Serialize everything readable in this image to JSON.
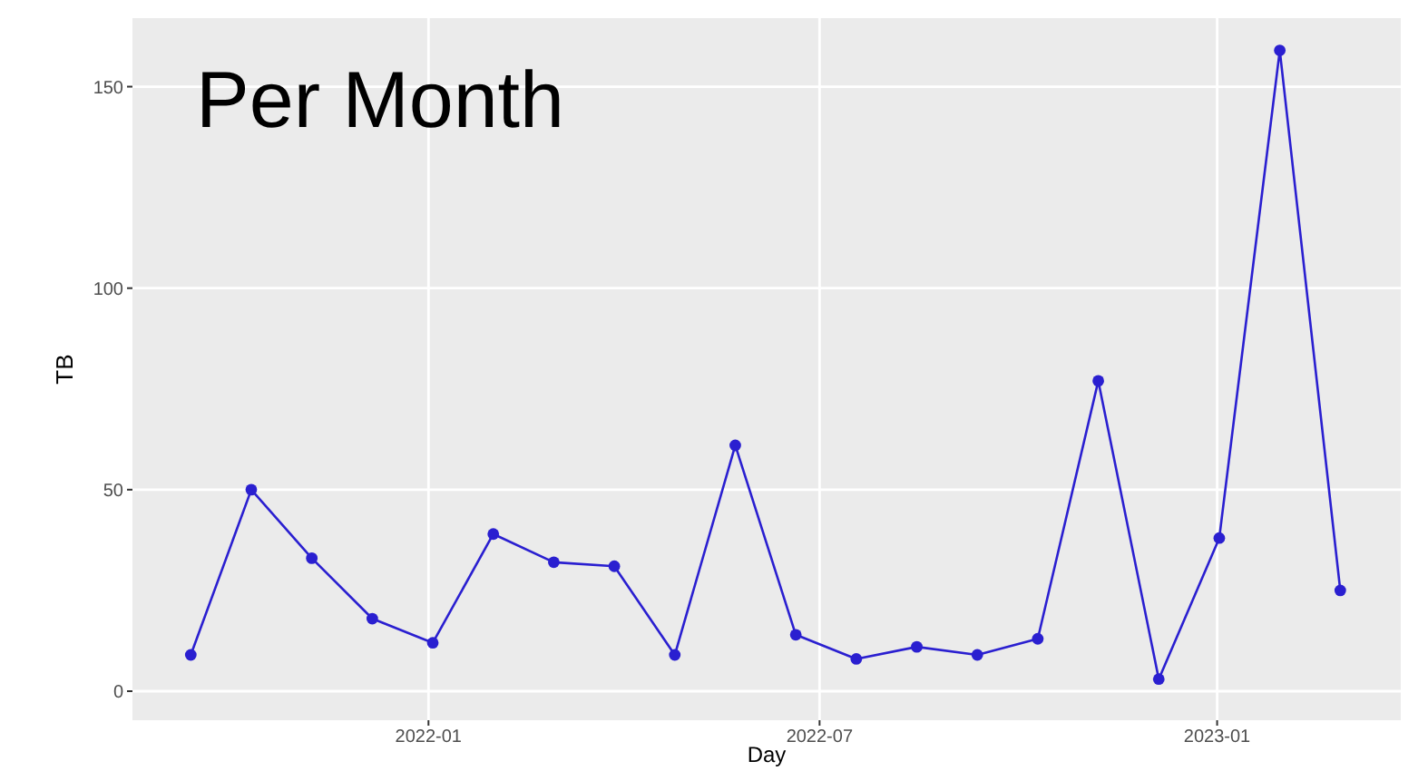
{
  "chart_data": {
    "type": "line",
    "title": "Per Month",
    "xlabel": "Day",
    "ylabel": "TB",
    "x": [
      "2021-09-13",
      "2021-10-11",
      "2021-11-08",
      "2021-12-06",
      "2022-01-03",
      "2022-01-31",
      "2022-02-28",
      "2022-03-28",
      "2022-04-25",
      "2022-05-23",
      "2022-06-20",
      "2022-07-18",
      "2022-08-15",
      "2022-09-12",
      "2022-10-10",
      "2022-11-07",
      "2022-12-05",
      "2023-01-02",
      "2023-01-30",
      "2023-02-27"
    ],
    "series": [
      {
        "color": "#2a1fd0",
        "values": [
          9,
          50,
          33,
          18,
          12,
          39,
          32,
          31,
          9,
          61,
          14,
          8,
          11,
          9,
          13,
          77,
          3,
          38,
          159,
          25
        ]
      }
    ],
    "xlim": [
      "2021-08-17",
      "2023-03-27"
    ],
    "xticks": [
      {
        "value": "2022-01-01",
        "label": "2022-01"
      },
      {
        "value": "2022-07-01",
        "label": "2022-07"
      },
      {
        "value": "2023-01-01",
        "label": "2023-01"
      }
    ],
    "ylim": [
      -7.2,
      167
    ],
    "yticks": [
      0,
      50,
      100,
      150
    ],
    "grid": true,
    "marker": "circle",
    "line_style": "solid"
  }
}
